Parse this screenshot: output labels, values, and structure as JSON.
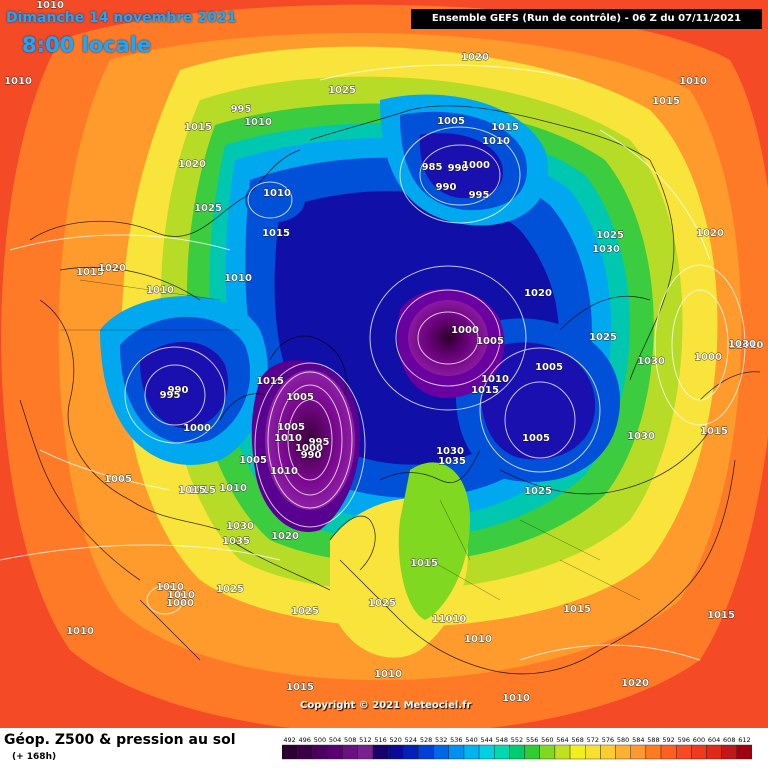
{
  "header": {
    "date": "Dimanche 14 novembre 2021",
    "local_time": "8:00 locale",
    "run_info": "Ensemble GEFS  (Run de contrôle)  -  06 Z du 07/11/2021"
  },
  "footer": {
    "title": "Géop. Z500 & pression au sol",
    "subtitle": "(+ 168h)",
    "copyright": "Copyright © 2021 Meteociel.fr"
  },
  "scale_labels": [
    "492",
    "496",
    "500",
    "504",
    "508",
    "512",
    "516",
    "520",
    "524",
    "528",
    "532",
    "536",
    "540",
    "544",
    "548",
    "552",
    "556",
    "560",
    "564",
    "568",
    "572",
    "576",
    "580",
    "584",
    "588",
    "592",
    "596",
    "600",
    "604",
    "608",
    "612"
  ],
  "scale_colors": [
    "#2a0030",
    "#3a0045",
    "#4b0060",
    "#5a0070",
    "#6a1080",
    "#7a2090",
    "#1a006a",
    "#0a0a96",
    "#0020b8",
    "#0040d8",
    "#0068e8",
    "#0090f0",
    "#00b4f0",
    "#00d0e0",
    "#00d8b0",
    "#00cc70",
    "#30cc30",
    "#80d820",
    "#c0e020",
    "#f0f020",
    "#f8e030",
    "#ffcc30",
    "#ffb030",
    "#ff9830",
    "#ff7a20",
    "#ff6020",
    "#f84a20",
    "#f03a20",
    "#e02a18",
    "#c01818",
    "#a00010"
  ],
  "pressure_labels": [
    {
      "text": "1010"
    },
    {
      "text": "1010"
    },
    {
      "text": "1020"
    },
    {
      "text": "1025"
    },
    {
      "text": "1015"
    },
    {
      "text": "1010"
    },
    {
      "text": "995"
    },
    {
      "text": "1010"
    },
    {
      "text": "1015"
    },
    {
      "text": "1005"
    },
    {
      "text": "1015"
    },
    {
      "text": "1010"
    },
    {
      "text": "985"
    },
    {
      "text": "990"
    },
    {
      "text": "990"
    },
    {
      "text": "1000"
    },
    {
      "text": "995"
    },
    {
      "text": "1020"
    },
    {
      "text": "1025"
    },
    {
      "text": "1010"
    },
    {
      "text": "1015"
    },
    {
      "text": "1025"
    },
    {
      "text": "1030"
    },
    {
      "text": "1020"
    },
    {
      "text": "1015"
    },
    {
      "text": "1020"
    },
    {
      "text": "1010"
    },
    {
      "text": "1010"
    },
    {
      "text": "1020"
    },
    {
      "text": "1000"
    },
    {
      "text": "1005"
    },
    {
      "text": "1025"
    },
    {
      "text": "1030"
    },
    {
      "text": "1000"
    },
    {
      "text": "11010"
    },
    {
      "text": "990"
    },
    {
      "text": "995"
    },
    {
      "text": "1000"
    },
    {
      "text": "1015"
    },
    {
      "text": "1005"
    },
    {
      "text": "1005"
    },
    {
      "text": "1010"
    },
    {
      "text": "1005"
    },
    {
      "text": "1010"
    },
    {
      "text": "995"
    },
    {
      "text": "1000"
    },
    {
      "text": "990"
    },
    {
      "text": "1010"
    },
    {
      "text": "1015"
    },
    {
      "text": "1005"
    },
    {
      "text": "1030"
    },
    {
      "text": "1015"
    },
    {
      "text": "1005"
    },
    {
      "text": "1030"
    },
    {
      "text": "1035"
    },
    {
      "text": "1005"
    },
    {
      "text": "1015"
    },
    {
      "text": "1010"
    },
    {
      "text": "1030"
    },
    {
      "text": "1035"
    },
    {
      "text": "1025"
    },
    {
      "text": "1020"
    },
    {
      "text": "1015"
    },
    {
      "text": "1010"
    },
    {
      "text": "1000"
    },
    {
      "text": "1025"
    },
    {
      "text": "1025"
    },
    {
      "text": "1025"
    },
    {
      "text": "1015"
    },
    {
      "text": "11010"
    },
    {
      "text": "1010"
    },
    {
      "text": "1015"
    },
    {
      "text": "1010"
    },
    {
      "text": "1010"
    },
    {
      "text": "1020"
    },
    {
      "text": "1010"
    },
    {
      "text": "1015"
    },
    {
      "text": "1030"
    },
    {
      "text": "1015"
    },
    {
      "text": "1010"
    }
  ]
}
